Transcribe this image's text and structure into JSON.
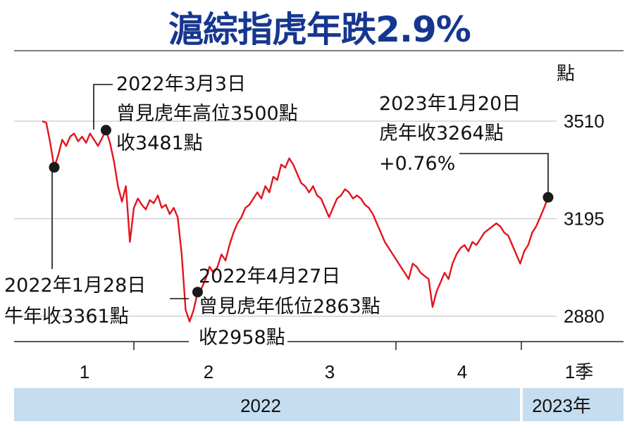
{
  "title": "滬綜指虎年跌2.9%",
  "colors": {
    "line": "#e3141e",
    "title": "#16378f",
    "band": "#c5ddf0",
    "grid": "#c8c8c8",
    "dot": "#1a1a1a"
  },
  "chart_data": {
    "type": "line",
    "title": "滬綜指虎年跌2.9%",
    "ylabel": "點",
    "ylim": [
      2860,
      3540
    ],
    "yticks": [
      3510,
      3195,
      2880
    ],
    "grid": true,
    "xticks": [
      "1",
      "2",
      "3",
      "4",
      "1季"
    ],
    "years": [
      "2022",
      "2023年"
    ],
    "series": [
      {
        "values": [
          3510,
          3505,
          3440,
          3361,
          3400,
          3450,
          3430,
          3460,
          3470,
          3445,
          3460,
          3440,
          3470,
          3450,
          3430,
          3455,
          3481,
          3440,
          3380,
          3300,
          3250,
          3300,
          3120,
          3230,
          3260,
          3240,
          3225,
          3255,
          3245,
          3270,
          3230,
          3240,
          3210,
          3230,
          3200,
          3080,
          2900,
          2863,
          2900,
          2958,
          2970,
          3000,
          3040,
          3020,
          3040,
          3080,
          3060,
          3110,
          3150,
          3180,
          3200,
          3230,
          3240,
          3260,
          3280,
          3260,
          3300,
          3280,
          3330,
          3320,
          3370,
          3360,
          3390,
          3370,
          3340,
          3310,
          3300,
          3280,
          3300,
          3270,
          3260,
          3230,
          3200,
          3230,
          3260,
          3270,
          3290,
          3280,
          3260,
          3270,
          3260,
          3240,
          3230,
          3210,
          3180,
          3150,
          3120,
          3100,
          3080,
          3060,
          3040,
          3020,
          3000,
          3050,
          3040,
          3020,
          3010,
          3000,
          2910,
          2960,
          2990,
          3020,
          3000,
          3050,
          3080,
          3100,
          3110,
          3090,
          3120,
          3110,
          3130,
          3150,
          3160,
          3170,
          3180,
          3170,
          3150,
          3140,
          3110,
          3080,
          3050,
          3090,
          3110,
          3150,
          3170,
          3200,
          3230,
          3264
        ]
      }
    ]
  },
  "annotations": [
    {
      "lines": [
        "2022年3月3日",
        "曾見虎年高位3500點",
        "收3481點"
      ]
    },
    {
      "lines": [
        "2023年1月20日",
        "虎年收3264點",
        "+0.76%"
      ]
    },
    {
      "lines": [
        "2022年1月28日",
        "牛年收3361點"
      ]
    },
    {
      "lines": [
        "2022年4月27日",
        "曾見虎年低位2863點",
        "收2958點"
      ]
    }
  ]
}
